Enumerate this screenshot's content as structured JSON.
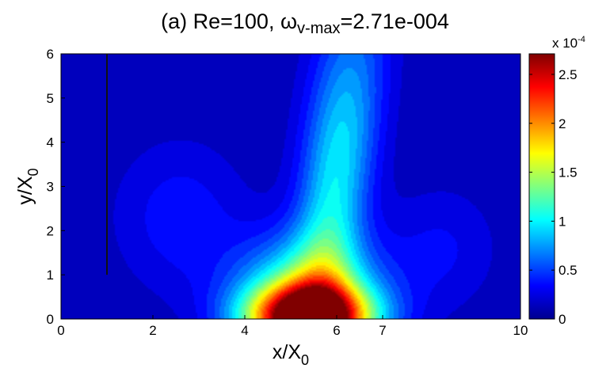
{
  "chart_data": {
    "type": "heatmap",
    "title": {
      "prefix": "(a) Re=100, ",
      "symbol": "ω",
      "subscript": "v-max",
      "suffix": "=2.71e-004"
    },
    "xlabel": {
      "base": "x/X",
      "subscript": "0"
    },
    "ylabel": {
      "base": "y/X",
      "subscript": "0"
    },
    "xlim": [
      0,
      10
    ],
    "ylim": [
      0,
      6
    ],
    "x_ticks": [
      0,
      2,
      4,
      6,
      7,
      10
    ],
    "y_ticks": [
      0,
      1,
      2,
      3,
      4,
      5,
      6
    ],
    "colorbar": {
      "exponent_label": "x 10",
      "exponent": "-4",
      "min": 0,
      "max": 2.71,
      "ticks": [
        0,
        0.5,
        1,
        1.5,
        2,
        2.5
      ]
    },
    "vorticity_peak": {
      "x": 5.4,
      "y": 0,
      "value": 2.71
    },
    "plate_line": {
      "x": 1,
      "y_from": 1,
      "y_to": 6
    },
    "colormap": "jet",
    "grid": false
  }
}
